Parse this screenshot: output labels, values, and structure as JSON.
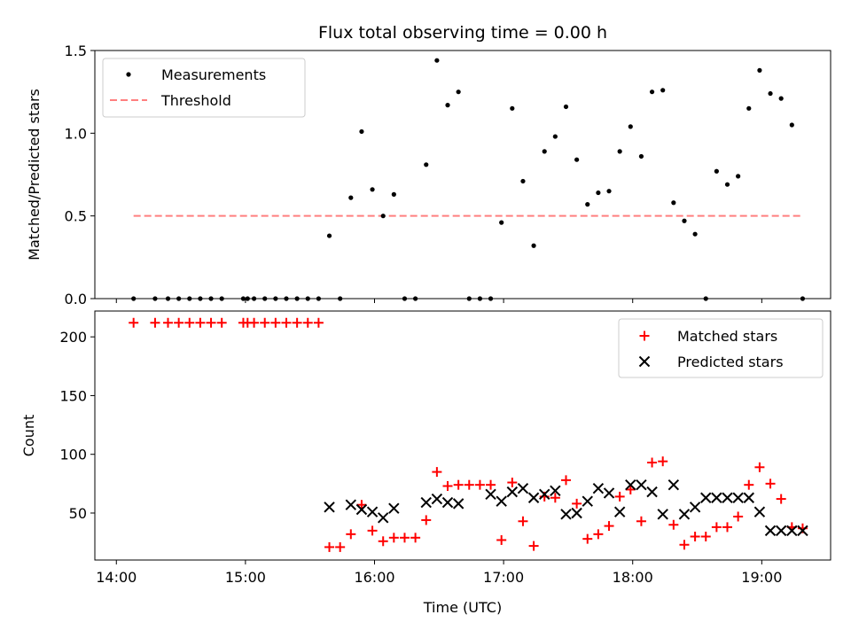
{
  "chart_data": [
    {
      "type": "scatter",
      "title": "Flux total observing time = 0.00 h",
      "xlabel": "",
      "ylabel": "Matched/Predicted stars",
      "ylim": [
        0,
        1.5
      ],
      "yticks": [
        "0.0",
        "0.5",
        "1.0",
        "1.5"
      ],
      "yticks_values": [
        0,
        0.5,
        1.0,
        1.5
      ],
      "legend_position": "upper-left",
      "grid": false,
      "series": [
        {
          "name": "Measurements",
          "kind": "points",
          "color": "#000000",
          "x": [
            "14:08",
            "14:18",
            "14:24",
            "14:29",
            "14:34",
            "14:39",
            "14:44",
            "14:49",
            "14:59",
            "15:01",
            "15:04",
            "15:09",
            "15:14",
            "15:19",
            "15:24",
            "15:29",
            "15:34",
            "15:39",
            "15:44",
            "15:49",
            "15:54",
            "15:59",
            "16:04",
            "16:09",
            "16:14",
            "16:19",
            "16:24",
            "16:29",
            "16:34",
            "16:39",
            "16:44",
            "16:49",
            "16:54",
            "16:59",
            "17:04",
            "17:09",
            "17:14",
            "17:19",
            "17:24",
            "17:29",
            "17:34",
            "17:39",
            "17:44",
            "17:49",
            "17:54",
            "17:59",
            "18:04",
            "18:09",
            "18:14",
            "18:19",
            "18:24",
            "18:29",
            "18:34",
            "18:39",
            "18:44",
            "18:49",
            "18:54",
            "18:59",
            "19:04",
            "19:09",
            "19:14",
            "19:19"
          ],
          "y": [
            0,
            0,
            0,
            0,
            0,
            0,
            0,
            0,
            0,
            0,
            0,
            0,
            0,
            0,
            0,
            0,
            0,
            0.38,
            0,
            0.61,
            1.01,
            0.66,
            0.5,
            0.63,
            0,
            0,
            0.81,
            1.44,
            1.17,
            1.25,
            0,
            0,
            0,
            0.46,
            1.15,
            0.71,
            0.32,
            0.89,
            0.98,
            1.16,
            0.84,
            0.57,
            0.64,
            0.65,
            0.89,
            1.04,
            0.86,
            1.25,
            1.26,
            0.58,
            0.47,
            0.39,
            0,
            0.77,
            0.69,
            0.74,
            1.15,
            1.38,
            1.24,
            1.21,
            1.05,
            0
          ]
        },
        {
          "name": "Threshold",
          "kind": "dashed-line",
          "color": "#ff7f7f",
          "x": [
            "14:08",
            "19:19"
          ],
          "y": [
            0.5,
            0.5
          ]
        }
      ]
    },
    {
      "type": "scatter",
      "title": "",
      "xlabel": "Time (UTC)",
      "ylabel": "Count",
      "ylim": [
        10,
        222
      ],
      "yticks": [
        "50",
        "100",
        "150",
        "200"
      ],
      "yticks_values": [
        50,
        100,
        150,
        200
      ],
      "x_range": [
        "13:50",
        "19:32"
      ],
      "xticks": [
        "14:00",
        "15:00",
        "16:00",
        "17:00",
        "18:00",
        "19:00"
      ],
      "legend_position": "upper-right",
      "grid": false,
      "series": [
        {
          "name": "Matched stars",
          "marker": "plus",
          "color": "#ff0000",
          "x": [
            "14:08",
            "14:18",
            "14:24",
            "14:29",
            "14:34",
            "14:39",
            "14:44",
            "14:49",
            "14:59",
            "15:01",
            "15:04",
            "15:09",
            "15:14",
            "15:19",
            "15:24",
            "15:29",
            "15:34",
            "15:39",
            "15:44",
            "15:49",
            "15:54",
            "15:59",
            "16:04",
            "16:09",
            "16:14",
            "16:19",
            "16:24",
            "16:29",
            "16:34",
            "16:39",
            "16:44",
            "16:49",
            "16:54",
            "16:59",
            "17:04",
            "17:09",
            "17:14",
            "17:19",
            "17:24",
            "17:29",
            "17:34",
            "17:39",
            "17:44",
            "17:49",
            "17:54",
            "17:59",
            "18:04",
            "18:09",
            "18:14",
            "18:19",
            "18:24",
            "18:29",
            "18:34",
            "18:39",
            "18:44",
            "18:49",
            "18:54",
            "18:59",
            "19:04",
            "19:09",
            "19:14",
            "19:19"
          ],
          "y": [
            212,
            212,
            212,
            212,
            212,
            212,
            212,
            212,
            212,
            212,
            212,
            212,
            212,
            212,
            212,
            212,
            212,
            21,
            21,
            32,
            57,
            35,
            26,
            29,
            29,
            29,
            44,
            85,
            73,
            74,
            74,
            74,
            74,
            27,
            76,
            43,
            22,
            64,
            63,
            78,
            58,
            28,
            32,
            39,
            64,
            70,
            43,
            93,
            94,
            40,
            23,
            30,
            30,
            38,
            38,
            47,
            74,
            89,
            75,
            62,
            38,
            37
          ]
        },
        {
          "name": "Predicted stars",
          "marker": "x",
          "color": "#000000",
          "x": [
            "15:39",
            "15:49",
            "15:54",
            "15:59",
            "16:04",
            "16:09",
            "16:24",
            "16:29",
            "16:34",
            "16:39",
            "16:54",
            "16:59",
            "17:04",
            "17:09",
            "17:14",
            "17:19",
            "17:24",
            "17:29",
            "17:34",
            "17:39",
            "17:44",
            "17:49",
            "17:54",
            "17:59",
            "18:04",
            "18:09",
            "18:14",
            "18:19",
            "18:24",
            "18:29",
            "18:34",
            "18:39",
            "18:44",
            "18:49",
            "18:54",
            "18:59",
            "19:04",
            "19:09",
            "19:14",
            "19:19"
          ],
          "y": [
            55,
            57,
            53,
            51,
            46,
            54,
            59,
            62,
            59,
            58,
            66,
            60,
            68,
            71,
            63,
            66,
            69,
            49,
            50,
            60,
            71,
            67,
            51,
            74,
            74,
            68,
            49,
            74,
            49,
            55,
            63,
            63,
            63,
            63,
            63,
            51,
            35,
            35,
            35,
            35
          ]
        }
      ]
    }
  ]
}
